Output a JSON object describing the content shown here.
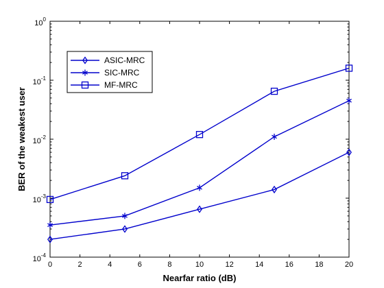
{
  "chart_data": {
    "type": "line",
    "xlabel": "Nearfar ratio (dB)",
    "ylabel": "BER of the weakest user",
    "xlim": [
      0,
      20
    ],
    "ylim": [
      0.0001,
      1
    ],
    "yscale": "log",
    "grid": false,
    "legend_position": "top-left",
    "x_ticks": [
      "0",
      "2",
      "4",
      "6",
      "8",
      "10",
      "12",
      "14",
      "16",
      "18",
      "20"
    ],
    "y_ticks": [
      {
        "base": "10",
        "exp": "-4"
      },
      {
        "base": "10",
        "exp": "-3"
      },
      {
        "base": "10",
        "exp": "-2"
      },
      {
        "base": "10",
        "exp": "-1"
      },
      {
        "base": "10",
        "exp": "0"
      }
    ],
    "x": [
      0,
      5,
      10,
      15,
      20
    ],
    "series": [
      {
        "name": "ASIC-MRC",
        "marker": "diamond",
        "values": [
          0.0002,
          0.0003,
          0.00065,
          0.0014,
          0.006
        ]
      },
      {
        "name": "SIC-MRC",
        "marker": "star",
        "values": [
          0.00035,
          0.0005,
          0.0015,
          0.011,
          0.045
        ]
      },
      {
        "name": "MF-MRC",
        "marker": "square",
        "values": [
          0.00095,
          0.0024,
          0.012,
          0.065,
          0.16
        ]
      }
    ],
    "line_color": "#0000cc"
  }
}
